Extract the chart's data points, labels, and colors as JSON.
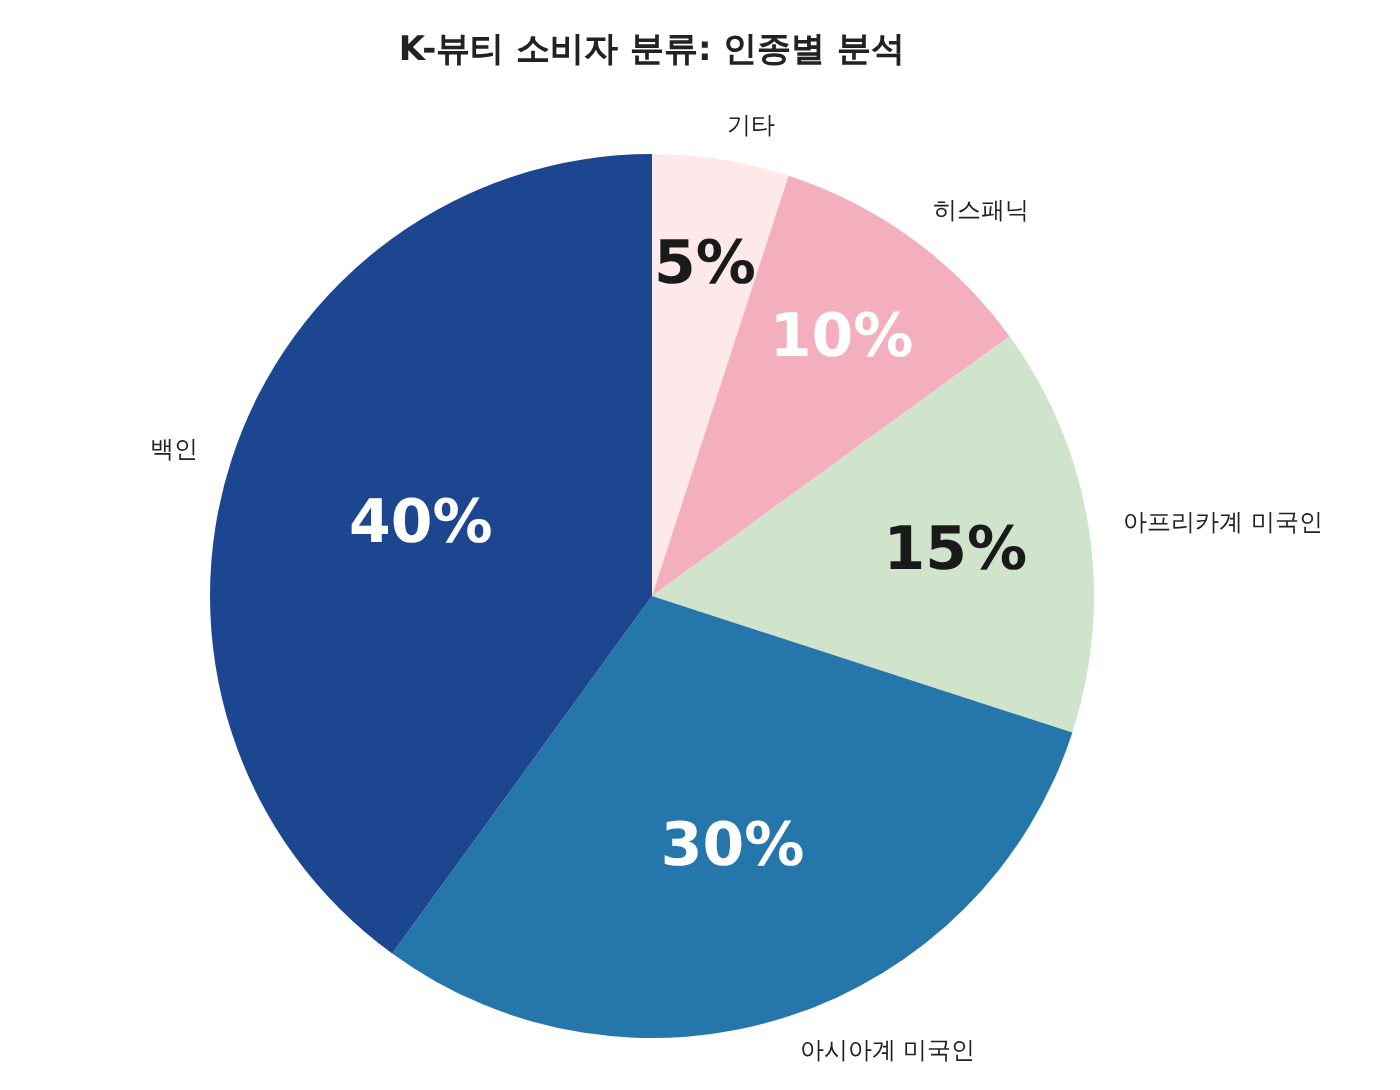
{
  "chart_data": {
    "type": "pie",
    "title": "K-뷰티 소비자 분류: 인종별 분석",
    "categories": [
      "기타",
      "히스패닉",
      "아프리카계 미국인",
      "아시아계 미국인",
      "백인"
    ],
    "values": [
      5,
      10,
      15,
      30,
      40
    ],
    "value_labels": [
      "5%",
      "10%",
      "15%",
      "30%",
      "40%"
    ],
    "colors": [
      "#fde8ea",
      "#f4afbf",
      "#d0e4cc",
      "#2476ab",
      "#1c4690"
    ]
  }
}
